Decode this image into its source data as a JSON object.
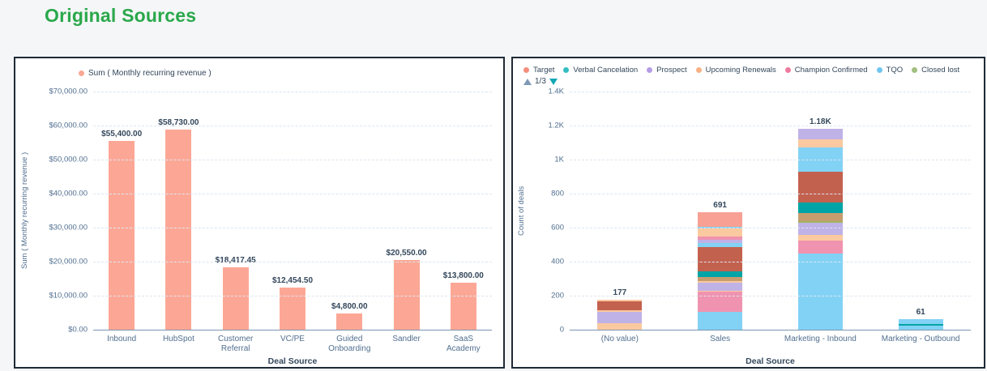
{
  "page": {
    "title": "Original Sources"
  },
  "colors": {
    "title_green": "#2aa84b",
    "panel_border": "#1e2a36",
    "dark_text": "#33475b",
    "axis_text": "#516f90",
    "gridline": "#dce6f0",
    "axis_line": "#7b96b2"
  },
  "icons": {
    "legend_prev": "triangle-up-icon",
    "legend_next": "triangle-down-icon",
    "legend_prev_color": "#7c98b6",
    "legend_next_color": "#12a7b4"
  },
  "chart_data": [
    {
      "type": "bar",
      "legend": [
        {
          "label": "Sum ( Monthly recurring revenue )",
          "color": "#fca795"
        }
      ],
      "categories": [
        "Inbound",
        "HubSpot",
        "Customer Referral",
        "VC/PE",
        "Guided Onboarding",
        "Sandler",
        "SaaS Academy"
      ],
      "values": [
        55400,
        58730,
        18417.45,
        12454.5,
        4800,
        20550,
        13800
      ],
      "value_labels": [
        "$55,400.00",
        "$58,730.00",
        "$18,417.45",
        "$12,454.50",
        "$4,800.00",
        "$20,550.00",
        "$13,800.00"
      ],
      "bar_color": "#fca795",
      "xlabel": "Deal Source",
      "ylabel": "Sum ( Monthly recurring revenue )",
      "ylim": [
        0,
        70000
      ],
      "yticks": [
        "$70,000.00",
        "$60,000.00",
        "$50,000.00",
        "$40,000.00",
        "$30,000.00",
        "$20,000.00",
        "$10,000.00",
        "$0.00"
      ],
      "grid": "horizontal-dashed",
      "legend_position": "top-left"
    },
    {
      "type": "stacked-bar",
      "legend": [
        {
          "label": "Target",
          "color": "#f58e7c"
        },
        {
          "label": "Verbal Cancelation",
          "color": "#35bdc2"
        },
        {
          "label": "Prospect",
          "color": "#b49ce6"
        },
        {
          "label": "Upcoming Renewals",
          "color": "#f7b183"
        },
        {
          "label": "Champion Confirmed",
          "color": "#ee7ba0"
        },
        {
          "label": "TQO",
          "color": "#6fc6f0"
        },
        {
          "label": "Closed lost",
          "color": "#a1bf7e"
        }
      ],
      "legend_pagination": "1/3",
      "categories": [
        "(No value)",
        "Sales",
        "Marketing - Inbound",
        "Marketing - Outbound"
      ],
      "totals": [
        177,
        691,
        1180,
        61
      ],
      "total_labels": [
        "177",
        "691",
        "1.18K",
        "61"
      ],
      "xlabel": "Deal Source",
      "ylabel": "Count of deals",
      "ylim": [
        0,
        1400
      ],
      "yticks": [
        "1.4K",
        "1.2K",
        "1K",
        "800",
        "600",
        "400",
        "200",
        "0"
      ],
      "grid": "horizontal-dashed",
      "stacks": [
        [
          {
            "color": "#fbc9a0",
            "value": 40
          },
          {
            "color": "#bfb2e6",
            "value": 65
          },
          {
            "color": "#fbc9a0",
            "value": 10
          },
          {
            "color": "#c3614f",
            "value": 50
          },
          {
            "color": "#fbc9a0",
            "value": 12
          }
        ],
        [
          {
            "color": "#82d2f5",
            "value": 103
          },
          {
            "color": "#f093b0",
            "value": 119
          },
          {
            "color": "#fbc9a0",
            "value": 8
          },
          {
            "color": "#bfb2e6",
            "value": 48
          },
          {
            "color": "#fbc9a0",
            "value": 8
          },
          {
            "color": "#c79d6e",
            "value": 24
          },
          {
            "color": "#00a4a6",
            "value": 32
          },
          {
            "color": "#c3614f",
            "value": 143
          },
          {
            "color": "#82d2f5",
            "value": 24
          },
          {
            "color": "#bfb2e6",
            "value": 19
          },
          {
            "color": "#f093b0",
            "value": 19
          },
          {
            "color": "#fbc9a0",
            "value": 48
          },
          {
            "color": "#82d2f5",
            "value": 10
          },
          {
            "color": "#f8a094",
            "value": 86
          }
        ],
        [
          {
            "color": "#82d2f5",
            "value": 446
          },
          {
            "color": "#f093b0",
            "value": 80
          },
          {
            "color": "#fbc9a0",
            "value": 33
          },
          {
            "color": "#bfb2e6",
            "value": 71
          },
          {
            "color": "#a3b55f",
            "value": 9
          },
          {
            "color": "#c79d6e",
            "value": 47
          },
          {
            "color": "#00a4a6",
            "value": 62
          },
          {
            "color": "#c3614f",
            "value": 181
          },
          {
            "color": "#82d2f5",
            "value": 142
          },
          {
            "color": "#fbc9a0",
            "value": 47
          },
          {
            "color": "#bfb2e6",
            "value": 62
          }
        ],
        [
          {
            "color": "#82d2f5",
            "value": 25
          },
          {
            "color": "#00a4a6",
            "value": 8
          },
          {
            "color": "#82d2f5",
            "value": 28
          }
        ]
      ]
    }
  ]
}
